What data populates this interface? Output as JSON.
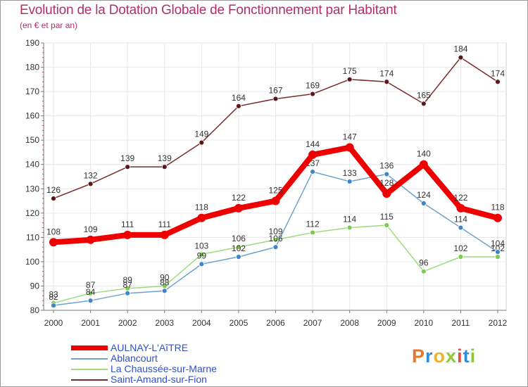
{
  "title": "Evolution de la Dotation Globale de Fonctionnement par Habitant",
  "subtitle": "(en € et par an)",
  "logo_text": "Proxiti",
  "colors": {
    "title": "#b0306a",
    "legend_text": "#3050c8",
    "axis_text": "#333333",
    "grid": "#e6e6e6",
    "logo": [
      "#e8762a",
      "#2a8fd8",
      "#f0b428",
      "#8cc83c",
      "#e84c3c",
      "#2a8fd8",
      "#8cc83c"
    ]
  },
  "chart_data": {
    "type": "line",
    "title": "Evolution de la Dotation Globale de Fonctionnement par Habitant",
    "subtitle": "(en € et par an)",
    "xlabel": "",
    "ylabel": "",
    "ylim": [
      80,
      190
    ],
    "yticks": [
      80,
      90,
      100,
      110,
      120,
      130,
      140,
      150,
      160,
      170,
      180,
      190
    ],
    "categories": [
      "2000",
      "2001",
      "2002",
      "2003",
      "2004",
      "2005",
      "2006",
      "2007",
      "2008",
      "2009",
      "2010",
      "2011",
      "2012"
    ],
    "grid": true,
    "legend_position": "bottom-left",
    "series": [
      {
        "name": "Saint-Amand-sur-Fion",
        "color": "#7a2a2a",
        "marker": "#5a1818",
        "thick": false,
        "values": [
          126,
          132,
          139,
          139,
          149,
          164,
          167,
          169,
          175,
          174,
          165,
          184,
          174
        ]
      },
      {
        "name": "La Chaussée-sur-Marne",
        "color": "#9bdc7a",
        "marker": "#7ecb50",
        "thick": false,
        "values": [
          83,
          87,
          89,
          90,
          103,
          106,
          109,
          112,
          114,
          115,
          96,
          102,
          102
        ]
      },
      {
        "name": "Ablancourt",
        "color": "#6fa2d0",
        "marker": "#3f86c8",
        "thick": false,
        "values": [
          82,
          84,
          87,
          88,
          99,
          102,
          106,
          137,
          133,
          136,
          124,
          114,
          104
        ]
      },
      {
        "name": "AULNAY-L'AîTRE",
        "color": "#ee0000",
        "marker": "#ee0000",
        "thick": true,
        "values": [
          108,
          109,
          111,
          111,
          118,
          122,
          125,
          144,
          147,
          128,
          140,
          122,
          118
        ]
      }
    ],
    "legend": [
      "AULNAY-L'AîTRE",
      "Ablancourt",
      "La Chaussée-sur-Marne",
      "Saint-Amand-sur-Fion"
    ]
  }
}
